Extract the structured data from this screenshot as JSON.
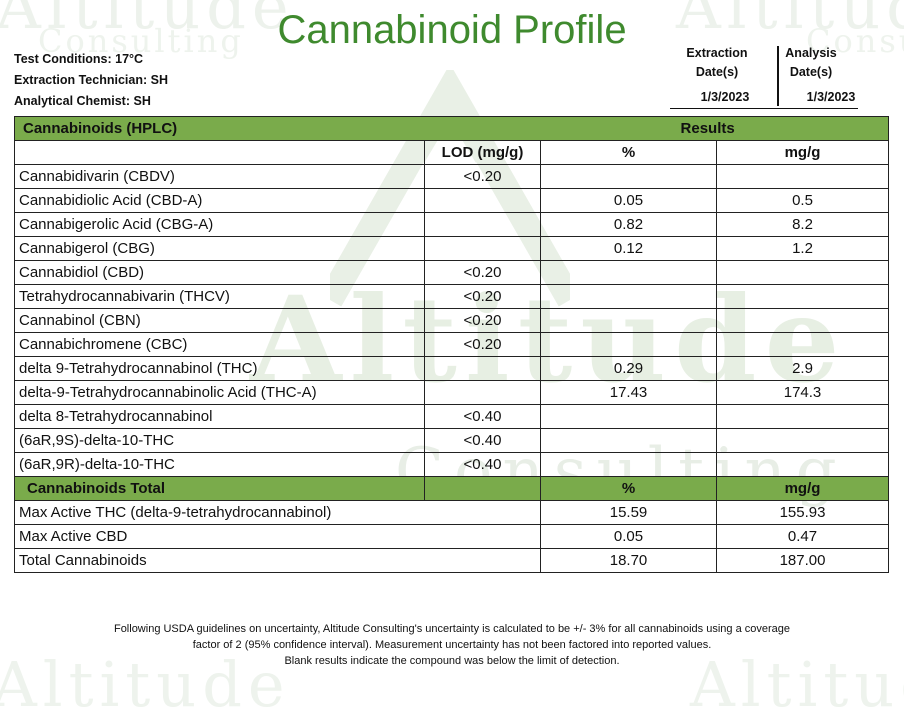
{
  "title": "Cannabinoid Profile",
  "watermark": {
    "brand": "Altitude",
    "sub": "Consulting"
  },
  "meta": {
    "test_conditions": "Test Conditions: 17°C",
    "extraction_technician": "Extraction Technician: SH",
    "analytical_chemist": "Analytical Chemist: SH"
  },
  "dates": {
    "extraction_label_1": "Extraction",
    "extraction_label_2": "Date(s)",
    "analysis_label_1": "Analysis",
    "analysis_label_2": "Date(s)",
    "extraction_value": "1/3/2023",
    "analysis_value": "1/3/2023"
  },
  "table": {
    "section_label": "Cannabinoids (HPLC)",
    "results_label": "Results",
    "columns": [
      "",
      "LOD (mg/g)",
      "%",
      "mg/g"
    ],
    "rows": [
      {
        "name": "Cannabidivarin (CBDV)",
        "lod": "<0.20",
        "pct": "",
        "mgg": ""
      },
      {
        "name": "Cannabidiolic Acid (CBD-A)",
        "lod": "",
        "pct": "0.05",
        "mgg": "0.5"
      },
      {
        "name": "Cannabigerolic Acid (CBG-A)",
        "lod": "",
        "pct": "0.82",
        "mgg": "8.2"
      },
      {
        "name": "Cannabigerol (CBG)",
        "lod": "",
        "pct": "0.12",
        "mgg": "1.2"
      },
      {
        "name": "Cannabidiol (CBD)",
        "lod": "<0.20",
        "pct": "",
        "mgg": ""
      },
      {
        "name": "Tetrahydrocannabivarin (THCV)",
        "lod": "<0.20",
        "pct": "",
        "mgg": ""
      },
      {
        "name": "Cannabinol (CBN)",
        "lod": "<0.20",
        "pct": "",
        "mgg": ""
      },
      {
        "name": "Cannabichromene (CBC)",
        "lod": "<0.20",
        "pct": "",
        "mgg": ""
      },
      {
        "name": "delta 9-Tetrahydrocannabinol (THC)",
        "lod": "",
        "pct": "0.29",
        "mgg": "2.9"
      },
      {
        "name": "delta-9-Tetrahydrocannabinolic Acid (THC-A)",
        "lod": "",
        "pct": "17.43",
        "mgg": "174.3"
      },
      {
        "name": "delta 8-Tetrahydrocannabinol",
        "lod": "<0.40",
        "pct": "",
        "mgg": ""
      },
      {
        "name": "(6aR,9S)-delta-10-THC",
        "lod": "<0.40",
        "pct": "",
        "mgg": ""
      },
      {
        "name": "(6aR,9R)-delta-10-THC",
        "lod": "<0.40",
        "pct": "",
        "mgg": ""
      }
    ],
    "totals_label": "Cannabinoids Total",
    "totals_pct_label": "%",
    "totals_mgg_label": "mg/g",
    "totals": [
      {
        "name": "Max Active THC (delta-9-tetrahydrocannabinol)",
        "pct": "15.59",
        "mgg": "155.93"
      },
      {
        "name": "Max Active CBD",
        "pct": "0.05",
        "mgg": "0.47"
      },
      {
        "name": "Total Cannabinoids",
        "pct": "18.70",
        "mgg": "187.00"
      }
    ]
  },
  "footnote": {
    "line1": "Following USDA guidelines on uncertainty, Altitude Consulting's uncertainty is calculated to be +/- 3% for all cannabinoids using a coverage",
    "line2": "factor of 2 (95% confidence interval). Measurement uncertainty has not been factored into reported values.",
    "line3": "Blank results indicate the compound was below the limit of detection."
  },
  "colors": {
    "title_green": "#3f8a2e",
    "header_green": "#7aab4b",
    "watermark": "#e7efe3"
  }
}
